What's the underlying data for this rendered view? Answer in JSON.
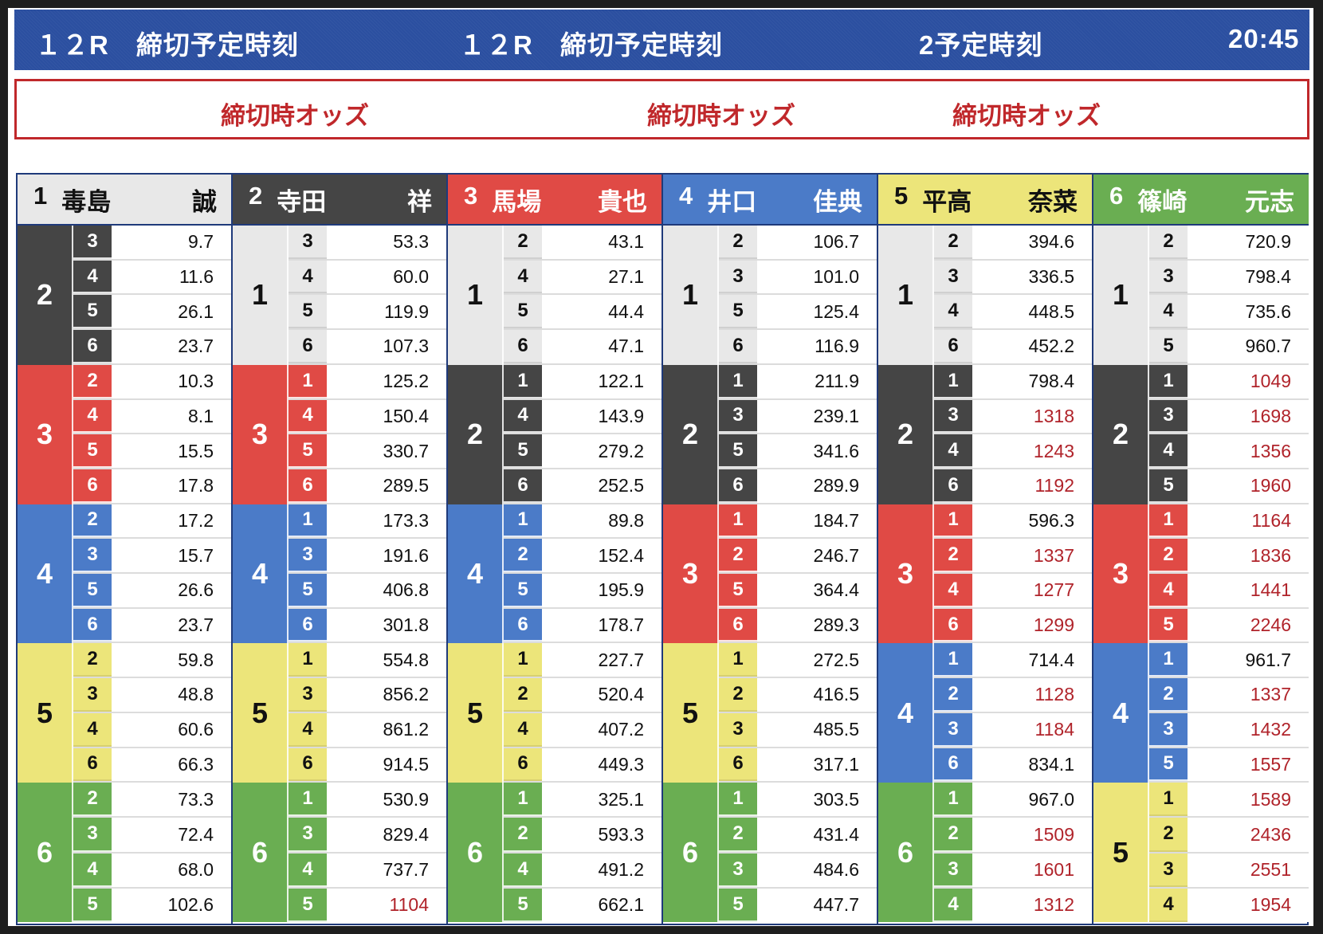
{
  "header": {
    "race_label_1": "１２R　締切予定時刻",
    "race_label_2": "１２R　締切予定時刻",
    "race_label_3": "2予定時刻",
    "time": "20:45"
  },
  "odds_bar": {
    "label_1": "締切時オッズ",
    "label_2": "締切時オッズ",
    "label_3": "締切時オッズ"
  },
  "colors": {
    "header_blue": "#2b4fa0",
    "odds_red": "#c0282b",
    "boat_1": "#e8e8e8",
    "boat_2": "#454545",
    "boat_3": "#e04a45",
    "boat_4": "#4b7bc8",
    "boat_5": "#ece57a",
    "boat_6": "#6aae52",
    "high_odds_text": "#b0232a"
  },
  "racers": [
    {
      "num": "1",
      "surname": "毒島",
      "given": "誠",
      "color": "c1",
      "groups": [
        {
          "second": "2",
          "color": "c2",
          "rows": [
            {
              "third": "3",
              "odds": "9.7"
            },
            {
              "third": "4",
              "odds": "11.6"
            },
            {
              "third": "5",
              "odds": "26.1"
            },
            {
              "third": "6",
              "odds": "23.7"
            }
          ]
        },
        {
          "second": "3",
          "color": "c3",
          "rows": [
            {
              "third": "2",
              "odds": "10.3"
            },
            {
              "third": "4",
              "odds": "8.1"
            },
            {
              "third": "5",
              "odds": "15.5"
            },
            {
              "third": "6",
              "odds": "17.8"
            }
          ]
        },
        {
          "second": "4",
          "color": "c4",
          "rows": [
            {
              "third": "2",
              "odds": "17.2"
            },
            {
              "third": "3",
              "odds": "15.7"
            },
            {
              "third": "5",
              "odds": "26.6"
            },
            {
              "third": "6",
              "odds": "23.7"
            }
          ]
        },
        {
          "second": "5",
          "color": "c5",
          "rows": [
            {
              "third": "2",
              "odds": "59.8"
            },
            {
              "third": "3",
              "odds": "48.8"
            },
            {
              "third": "4",
              "odds": "60.6"
            },
            {
              "third": "6",
              "odds": "66.3"
            }
          ]
        },
        {
          "second": "6",
          "color": "c6",
          "rows": [
            {
              "third": "2",
              "odds": "73.3"
            },
            {
              "third": "3",
              "odds": "72.4"
            },
            {
              "third": "4",
              "odds": "68.0"
            },
            {
              "third": "5",
              "odds": "102.6"
            }
          ]
        }
      ]
    },
    {
      "num": "2",
      "surname": "寺田",
      "given": "祥",
      "color": "c2",
      "groups": [
        {
          "second": "1",
          "color": "c1",
          "rows": [
            {
              "third": "3",
              "odds": "53.3"
            },
            {
              "third": "4",
              "odds": "60.0"
            },
            {
              "third": "5",
              "odds": "119.9"
            },
            {
              "third": "6",
              "odds": "107.3"
            }
          ]
        },
        {
          "second": "3",
          "color": "c3",
          "rows": [
            {
              "third": "1",
              "odds": "125.2"
            },
            {
              "third": "4",
              "odds": "150.4"
            },
            {
              "third": "5",
              "odds": "330.7"
            },
            {
              "third": "6",
              "odds": "289.5"
            }
          ]
        },
        {
          "second": "4",
          "color": "c4",
          "rows": [
            {
              "third": "1",
              "odds": "173.3"
            },
            {
              "third": "3",
              "odds": "191.6"
            },
            {
              "third": "5",
              "odds": "406.8"
            },
            {
              "third": "6",
              "odds": "301.8"
            }
          ]
        },
        {
          "second": "5",
          "color": "c5",
          "rows": [
            {
              "third": "1",
              "odds": "554.8"
            },
            {
              "third": "3",
              "odds": "856.2"
            },
            {
              "third": "4",
              "odds": "861.2"
            },
            {
              "third": "6",
              "odds": "914.5"
            }
          ]
        },
        {
          "second": "6",
          "color": "c6",
          "rows": [
            {
              "third": "1",
              "odds": "530.9"
            },
            {
              "third": "3",
              "odds": "829.4"
            },
            {
              "third": "4",
              "odds": "737.7"
            },
            {
              "third": "5",
              "odds": "1104"
            }
          ]
        }
      ]
    },
    {
      "num": "3",
      "surname": "馬場",
      "given": "貴也",
      "color": "c3",
      "groups": [
        {
          "second": "1",
          "color": "c1",
          "rows": [
            {
              "third": "2",
              "odds": "43.1"
            },
            {
              "third": "4",
              "odds": "27.1"
            },
            {
              "third": "5",
              "odds": "44.4"
            },
            {
              "third": "6",
              "odds": "47.1"
            }
          ]
        },
        {
          "second": "2",
          "color": "c2",
          "rows": [
            {
              "third": "1",
              "odds": "122.1"
            },
            {
              "third": "4",
              "odds": "143.9"
            },
            {
              "third": "5",
              "odds": "279.2"
            },
            {
              "third": "6",
              "odds": "252.5"
            }
          ]
        },
        {
          "second": "4",
          "color": "c4",
          "rows": [
            {
              "third": "1",
              "odds": "89.8"
            },
            {
              "third": "2",
              "odds": "152.4"
            },
            {
              "third": "5",
              "odds": "195.9"
            },
            {
              "third": "6",
              "odds": "178.7"
            }
          ]
        },
        {
          "second": "5",
          "color": "c5",
          "rows": [
            {
              "third": "1",
              "odds": "227.7"
            },
            {
              "third": "2",
              "odds": "520.4"
            },
            {
              "third": "4",
              "odds": "407.2"
            },
            {
              "third": "6",
              "odds": "449.3"
            }
          ]
        },
        {
          "second": "6",
          "color": "c6",
          "rows": [
            {
              "third": "1",
              "odds": "325.1"
            },
            {
              "third": "2",
              "odds": "593.3"
            },
            {
              "third": "4",
              "odds": "491.2"
            },
            {
              "third": "5",
              "odds": "662.1"
            }
          ]
        }
      ]
    },
    {
      "num": "4",
      "surname": "井口",
      "given": "佳典",
      "color": "c4",
      "groups": [
        {
          "second": "1",
          "color": "c1",
          "rows": [
            {
              "third": "2",
              "odds": "106.7"
            },
            {
              "third": "3",
              "odds": "101.0"
            },
            {
              "third": "5",
              "odds": "125.4"
            },
            {
              "third": "6",
              "odds": "116.9"
            }
          ]
        },
        {
          "second": "2",
          "color": "c2",
          "rows": [
            {
              "third": "1",
              "odds": "211.9"
            },
            {
              "third": "3",
              "odds": "239.1"
            },
            {
              "third": "5",
              "odds": "341.6"
            },
            {
              "third": "6",
              "odds": "289.9"
            }
          ]
        },
        {
          "second": "3",
          "color": "c3",
          "rows": [
            {
              "third": "1",
              "odds": "184.7"
            },
            {
              "third": "2",
              "odds": "246.7"
            },
            {
              "third": "5",
              "odds": "364.4"
            },
            {
              "third": "6",
              "odds": "289.3"
            }
          ]
        },
        {
          "second": "5",
          "color": "c5",
          "rows": [
            {
              "third": "1",
              "odds": "272.5"
            },
            {
              "third": "2",
              "odds": "416.5"
            },
            {
              "third": "3",
              "odds": "485.5"
            },
            {
              "third": "6",
              "odds": "317.1"
            }
          ]
        },
        {
          "second": "6",
          "color": "c6",
          "rows": [
            {
              "third": "1",
              "odds": "303.5"
            },
            {
              "third": "2",
              "odds": "431.4"
            },
            {
              "third": "3",
              "odds": "484.6"
            },
            {
              "third": "5",
              "odds": "447.7"
            }
          ]
        }
      ]
    },
    {
      "num": "5",
      "surname": "平高",
      "given": "奈菜",
      "color": "c5",
      "groups": [
        {
          "second": "1",
          "color": "c1",
          "rows": [
            {
              "third": "2",
              "odds": "394.6"
            },
            {
              "third": "3",
              "odds": "336.5"
            },
            {
              "third": "4",
              "odds": "448.5"
            },
            {
              "third": "6",
              "odds": "452.2"
            }
          ]
        },
        {
          "second": "2",
          "color": "c2",
          "rows": [
            {
              "third": "1",
              "odds": "798.4"
            },
            {
              "third": "3",
              "odds": "1318"
            },
            {
              "third": "4",
              "odds": "1243"
            },
            {
              "third": "6",
              "odds": "1192"
            }
          ]
        },
        {
          "second": "3",
          "color": "c3",
          "rows": [
            {
              "third": "1",
              "odds": "596.3"
            },
            {
              "third": "2",
              "odds": "1337"
            },
            {
              "third": "4",
              "odds": "1277"
            },
            {
              "third": "6",
              "odds": "1299"
            }
          ]
        },
        {
          "second": "4",
          "color": "c4",
          "rows": [
            {
              "third": "1",
              "odds": "714.4"
            },
            {
              "third": "2",
              "odds": "1128"
            },
            {
              "third": "3",
              "odds": "1184"
            },
            {
              "third": "6",
              "odds": "834.1"
            }
          ]
        },
        {
          "second": "6",
          "color": "c6",
          "rows": [
            {
              "third": "1",
              "odds": "967.0"
            },
            {
              "third": "2",
              "odds": "1509"
            },
            {
              "third": "3",
              "odds": "1601"
            },
            {
              "third": "4",
              "odds": "1312"
            }
          ]
        }
      ]
    },
    {
      "num": "6",
      "surname": "篠崎",
      "given": "元志",
      "color": "c6",
      "groups": [
        {
          "second": "1",
          "color": "c1",
          "rows": [
            {
              "third": "2",
              "odds": "720.9"
            },
            {
              "third": "3",
              "odds": "798.4"
            },
            {
              "third": "4",
              "odds": "735.6"
            },
            {
              "third": "5",
              "odds": "960.7"
            }
          ]
        },
        {
          "second": "2",
          "color": "c2",
          "rows": [
            {
              "third": "1",
              "odds": "1049"
            },
            {
              "third": "3",
              "odds": "1698"
            },
            {
              "third": "4",
              "odds": "1356"
            },
            {
              "third": "5",
              "odds": "1960"
            }
          ]
        },
        {
          "second": "3",
          "color": "c3",
          "rows": [
            {
              "third": "1",
              "odds": "1164"
            },
            {
              "third": "2",
              "odds": "1836"
            },
            {
              "third": "4",
              "odds": "1441"
            },
            {
              "third": "5",
              "odds": "2246"
            }
          ]
        },
        {
          "second": "4",
          "color": "c4",
          "rows": [
            {
              "third": "1",
              "odds": "961.7"
            },
            {
              "third": "2",
              "odds": "1337"
            },
            {
              "third": "3",
              "odds": "1432"
            },
            {
              "third": "5",
              "odds": "1557"
            }
          ]
        },
        {
          "second": "5",
          "color": "c5",
          "rows": [
            {
              "third": "1",
              "odds": "1589"
            },
            {
              "third": "2",
              "odds": "2436"
            },
            {
              "third": "3",
              "odds": "2551"
            },
            {
              "third": "4",
              "odds": "1954"
            }
          ]
        }
      ]
    }
  ]
}
